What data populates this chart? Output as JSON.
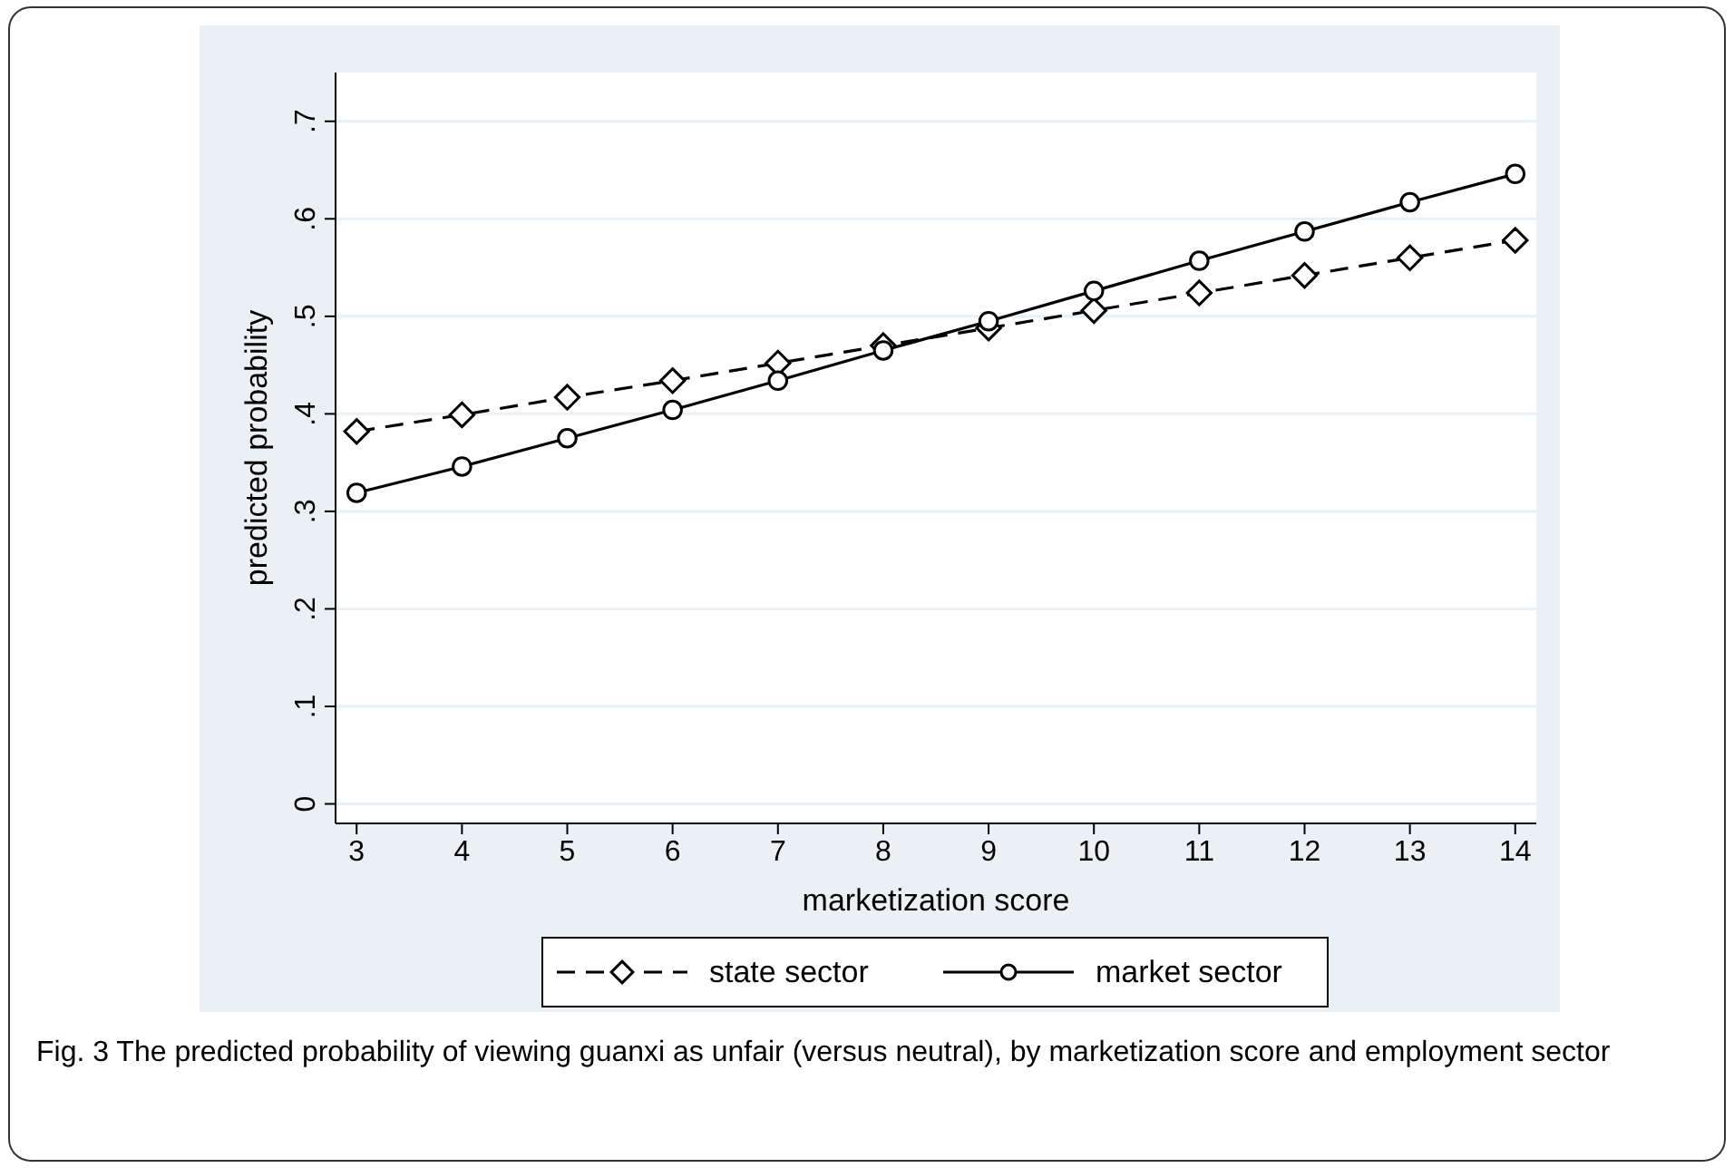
{
  "chart_data": {
    "type": "line",
    "xlabel": "marketization score",
    "ylabel": "predicted probability",
    "x": [
      3,
      4,
      5,
      6,
      7,
      8,
      9,
      10,
      11,
      12,
      13,
      14
    ],
    "xlim": [
      2.8,
      14.2
    ],
    "xticks": [
      3,
      4,
      5,
      6,
      7,
      8,
      9,
      10,
      11,
      12,
      13,
      14
    ],
    "ylim": [
      -0.02,
      0.75
    ],
    "yticks": [
      0,
      {
        "value": 0.1,
        "label": ".1"
      },
      {
        "value": 0.2,
        "label": ".2"
      },
      {
        "value": 0.3,
        "label": ".3"
      },
      {
        "value": 0.4,
        "label": ".4"
      },
      {
        "value": 0.5,
        "label": ".5"
      },
      {
        "value": 0.6,
        "label": ".6"
      },
      {
        "value": 0.7,
        "label": ".7"
      }
    ],
    "grid": "y",
    "legend": "bottom",
    "series": [
      {
        "name": "state sector",
        "color": "#000000",
        "marker": "diamond",
        "line_style": "dashed",
        "values": [
          0.382,
          0.399,
          0.417,
          0.434,
          0.452,
          0.47,
          0.488,
          0.506,
          0.524,
          0.542,
          0.56,
          0.578
        ]
      },
      {
        "name": "market sector",
        "color": "#000000",
        "marker": "circle",
        "line_style": "solid",
        "values": [
          0.319,
          0.346,
          0.375,
          0.404,
          0.434,
          0.465,
          0.495,
          0.526,
          0.557,
          0.587,
          0.617,
          0.646
        ]
      }
    ],
    "annotations": [
      "Fig. 3 The predicted probability of viewing guanxi as unfair (versus neutral), by marketization score and employment sector"
    ]
  }
}
